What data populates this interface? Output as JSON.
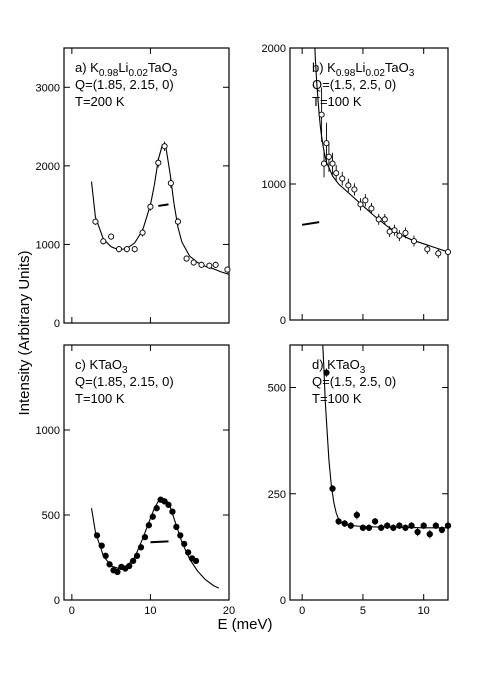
{
  "figure": {
    "ylabel": "Intensity (Arbitrary Units)",
    "xlabel": "E (meV)"
  },
  "chart_data": [
    {
      "id": "a",
      "type": "scatter",
      "label_lines": [
        {
          "parts": [
            {
              "t": "a) K"
            },
            {
              "t": "0.98",
              "sub": true
            },
            {
              "t": "Li"
            },
            {
              "t": "0.02",
              "sub": true
            },
            {
              "t": "TaO"
            },
            {
              "t": "3",
              "sub": true
            }
          ]
        },
        {
          "parts": [
            {
              "t": "Q=(1.85, 2.15, 0)"
            }
          ]
        },
        {
          "parts": [
            {
              "t": "T=200 K"
            }
          ]
        }
      ],
      "xlim": [
        -1,
        20
      ],
      "ylim": [
        0,
        3500
      ],
      "xticks": [
        0,
        10,
        20
      ],
      "xtick_labels": [
        "",
        "",
        ""
      ],
      "yticks": [
        0,
        1000,
        2000,
        3000
      ],
      "ytick_labels": [
        "0",
        "1000",
        "2000",
        "3000"
      ],
      "marker": "open-circle",
      "points": [
        {
          "x": 3.0,
          "y": 1290,
          "err": 40
        },
        {
          "x": 4.0,
          "y": 1040,
          "err": 40
        },
        {
          "x": 5.0,
          "y": 1100,
          "err": 40
        },
        {
          "x": 6.0,
          "y": 940,
          "err": 40
        },
        {
          "x": 7.0,
          "y": 940,
          "err": 40
        },
        {
          "x": 8.0,
          "y": 940,
          "err": 40
        },
        {
          "x": 9.0,
          "y": 1150,
          "err": 50
        },
        {
          "x": 10.0,
          "y": 1480,
          "err": 50
        },
        {
          "x": 11.0,
          "y": 2040,
          "err": 60
        },
        {
          "x": 11.8,
          "y": 2250,
          "err": 60
        },
        {
          "x": 12.6,
          "y": 1780,
          "err": 60
        },
        {
          "x": 13.5,
          "y": 1290,
          "err": 50
        },
        {
          "x": 14.6,
          "y": 820,
          "err": 40
        },
        {
          "x": 15.5,
          "y": 770,
          "err": 40
        },
        {
          "x": 16.5,
          "y": 740,
          "err": 40
        },
        {
          "x": 17.5,
          "y": 730,
          "err": 40
        },
        {
          "x": 18.3,
          "y": 740,
          "err": 40
        },
        {
          "x": 19.8,
          "y": 680,
          "err": 40
        }
      ],
      "fit": {
        "x": [
          2.5,
          3.0,
          4.0,
          5.0,
          6.0,
          7.0,
          8.0,
          9.0,
          10.0,
          10.5,
          11.0,
          11.5,
          12.0,
          12.5,
          13.0,
          13.5,
          14.0,
          15.0,
          16.0,
          17.0,
          18.0,
          19.0,
          20.0
        ],
        "y": [
          1800,
          1350,
          1070,
          970,
          930,
          950,
          1020,
          1180,
          1500,
          1760,
          2080,
          2260,
          2220,
          1900,
          1520,
          1220,
          1030,
          850,
          770,
          720,
          690,
          650,
          620
        ]
      },
      "segment": {
        "x": [
          11.0,
          12.3
        ],
        "y": [
          1490,
          1510
        ]
      }
    },
    {
      "id": "b",
      "type": "scatter",
      "label_lines": [
        {
          "parts": [
            {
              "t": "b) K"
            },
            {
              "t": "0.98",
              "sub": true
            },
            {
              "t": "Li"
            },
            {
              "t": "0.02",
              "sub": true
            },
            {
              "t": "TaO"
            },
            {
              "t": "3",
              "sub": true
            }
          ]
        },
        {
          "parts": [
            {
              "t": "Q=(1.5, 2.5, 0)"
            }
          ]
        },
        {
          "parts": [
            {
              "t": "T=100 K"
            }
          ]
        }
      ],
      "xlim": [
        -1,
        12
      ],
      "ylim": [
        0,
        2000
      ],
      "xticks": [
        0,
        5,
        10
      ],
      "xtick_labels": [
        "",
        "",
        ""
      ],
      "yticks": [
        0,
        1000,
        2000
      ],
      "ytick_labels": [
        "0",
        "1000",
        "2000"
      ],
      "marker": "open-circle",
      "points": [
        {
          "x": 1.6,
          "y": 1510,
          "err": 200
        },
        {
          "x": 1.8,
          "y": 1150,
          "err": 100
        },
        {
          "x": 2.0,
          "y": 1300,
          "err": 150
        },
        {
          "x": 2.2,
          "y": 1200,
          "err": 110
        },
        {
          "x": 2.5,
          "y": 1150,
          "err": 80
        },
        {
          "x": 2.8,
          "y": 1080,
          "err": 60
        },
        {
          "x": 3.3,
          "y": 1040,
          "err": 50
        },
        {
          "x": 3.8,
          "y": 990,
          "err": 50
        },
        {
          "x": 4.3,
          "y": 960,
          "err": 45
        },
        {
          "x": 4.8,
          "y": 850,
          "err": 45
        },
        {
          "x": 5.2,
          "y": 880,
          "err": 45
        },
        {
          "x": 5.7,
          "y": 820,
          "err": 40
        },
        {
          "x": 6.3,
          "y": 740,
          "err": 40
        },
        {
          "x": 6.8,
          "y": 740,
          "err": 40
        },
        {
          "x": 7.2,
          "y": 650,
          "err": 40
        },
        {
          "x": 7.6,
          "y": 660,
          "err": 40
        },
        {
          "x": 8.0,
          "y": 620,
          "err": 40
        },
        {
          "x": 8.5,
          "y": 640,
          "err": 40
        },
        {
          "x": 9.2,
          "y": 580,
          "err": 40
        },
        {
          "x": 10.3,
          "y": 520,
          "err": 35
        },
        {
          "x": 11.2,
          "y": 490,
          "err": 35
        },
        {
          "x": 12.0,
          "y": 500,
          "err": 30
        }
      ],
      "fit": {
        "x": [
          1.05,
          1.1,
          1.2,
          1.3,
          1.4,
          1.5,
          1.6,
          1.8,
          2.0,
          2.5,
          3.0,
          4.0,
          5.0,
          6.0,
          7.0,
          8.0,
          9.0,
          10.0,
          11.0,
          12.0
        ],
        "y": [
          2000,
          1900,
          1750,
          1620,
          1510,
          1420,
          1350,
          1240,
          1160,
          1060,
          1000,
          920,
          840,
          760,
          690,
          630,
          590,
          560,
          530,
          500
        ]
      },
      "segment": {
        "x": [
          0.0,
          1.4
        ],
        "y": [
          700,
          720
        ]
      }
    },
    {
      "id": "c",
      "type": "scatter",
      "label_lines": [
        {
          "parts": [
            {
              "t": "c) KTaO"
            },
            {
              "t": "3",
              "sub": true
            }
          ]
        },
        {
          "parts": [
            {
              "t": "Q=(1.85, 2.15, 0)"
            }
          ]
        },
        {
          "parts": [
            {
              "t": "T=100 K"
            }
          ]
        }
      ],
      "xlim": [
        -1,
        20
      ],
      "ylim": [
        0,
        1500
      ],
      "xticks": [
        0,
        10,
        20
      ],
      "xtick_labels": [
        "0",
        "10",
        "20"
      ],
      "yticks": [
        0,
        500,
        1000
      ],
      "ytick_labels": [
        "0",
        "500",
        "1000"
      ],
      "marker": "filled-circle",
      "points": [
        {
          "x": 3.2,
          "y": 380
        },
        {
          "x": 3.8,
          "y": 320
        },
        {
          "x": 4.3,
          "y": 260
        },
        {
          "x": 4.8,
          "y": 210
        },
        {
          "x": 5.3,
          "y": 175
        },
        {
          "x": 5.8,
          "y": 165
        },
        {
          "x": 6.3,
          "y": 195
        },
        {
          "x": 6.8,
          "y": 185
        },
        {
          "x": 7.3,
          "y": 200
        },
        {
          "x": 7.8,
          "y": 230
        },
        {
          "x": 8.3,
          "y": 260
        },
        {
          "x": 8.8,
          "y": 310
        },
        {
          "x": 9.3,
          "y": 370
        },
        {
          "x": 9.8,
          "y": 440
        },
        {
          "x": 10.3,
          "y": 490
        },
        {
          "x": 10.8,
          "y": 540
        },
        {
          "x": 11.3,
          "y": 590
        },
        {
          "x": 11.8,
          "y": 580
        },
        {
          "x": 12.3,
          "y": 560
        },
        {
          "x": 12.8,
          "y": 520
        },
        {
          "x": 13.3,
          "y": 430
        },
        {
          "x": 13.8,
          "y": 380
        },
        {
          "x": 14.3,
          "y": 330
        },
        {
          "x": 14.8,
          "y": 280
        },
        {
          "x": 15.3,
          "y": 245
        },
        {
          "x": 15.8,
          "y": 230
        }
      ],
      "fit": {
        "x": [
          2.5,
          3.0,
          4.0,
          5.0,
          6.0,
          7.0,
          8.0,
          9.0,
          10.0,
          10.5,
          11.0,
          11.5,
          12.0,
          12.5,
          13.0,
          14.0,
          15.0,
          16.0,
          17.0,
          18.0,
          18.7
        ],
        "y": [
          540,
          400,
          260,
          200,
          185,
          200,
          250,
          360,
          480,
          540,
          580,
          600,
          590,
          550,
          480,
          340,
          240,
          170,
          120,
          85,
          70
        ]
      },
      "segment": {
        "x": [
          10.0,
          12.3
        ],
        "y": [
          340,
          345
        ]
      }
    },
    {
      "id": "d",
      "type": "scatter",
      "label_lines": [
        {
          "parts": [
            {
              "t": "d) KTaO"
            },
            {
              "t": "3",
              "sub": true
            }
          ]
        },
        {
          "parts": [
            {
              "t": "Q=(1.5, 2.5, 0)"
            }
          ]
        },
        {
          "parts": [
            {
              "t": "T=100 K"
            }
          ]
        }
      ],
      "xlim": [
        -1,
        12
      ],
      "ylim": [
        0,
        600
      ],
      "xticks": [
        0,
        5,
        10
      ],
      "xtick_labels": [
        "0",
        "5",
        "10"
      ],
      "yticks": [
        0,
        250,
        500
      ],
      "ytick_labels": [
        "0",
        "250",
        "500"
      ],
      "marker": "filled-circle",
      "points": [
        {
          "x": 2.0,
          "y": 535,
          "err": 10
        },
        {
          "x": 2.5,
          "y": 262,
          "err": 8
        },
        {
          "x": 3.0,
          "y": 185,
          "err": 8
        },
        {
          "x": 3.5,
          "y": 180,
          "err": 8
        },
        {
          "x": 4.0,
          "y": 175,
          "err": 8
        },
        {
          "x": 4.5,
          "y": 200,
          "err": 10
        },
        {
          "x": 5.0,
          "y": 170,
          "err": 8
        },
        {
          "x": 5.5,
          "y": 170,
          "err": 8
        },
        {
          "x": 6.0,
          "y": 185,
          "err": 8
        },
        {
          "x": 6.5,
          "y": 170,
          "err": 8
        },
        {
          "x": 7.0,
          "y": 175,
          "err": 8
        },
        {
          "x": 7.5,
          "y": 170,
          "err": 8
        },
        {
          "x": 8.0,
          "y": 175,
          "err": 8
        },
        {
          "x": 8.5,
          "y": 170,
          "err": 8
        },
        {
          "x": 9.0,
          "y": 175,
          "err": 8
        },
        {
          "x": 9.5,
          "y": 160,
          "err": 10
        },
        {
          "x": 10.0,
          "y": 175,
          "err": 8
        },
        {
          "x": 10.5,
          "y": 155,
          "err": 10
        },
        {
          "x": 11.0,
          "y": 175,
          "err": 8
        },
        {
          "x": 11.5,
          "y": 165,
          "err": 8
        },
        {
          "x": 12.0,
          "y": 175,
          "err": 8
        }
      ],
      "fit": {
        "x": [
          1.7,
          1.8,
          1.9,
          2.0,
          2.2,
          2.4,
          2.6,
          2.8,
          3.0,
          3.3,
          3.6,
          4.0,
          5.0,
          6.0,
          8.0,
          10.0,
          12.0
        ],
        "y": [
          600,
          540,
          470,
          420,
          330,
          270,
          230,
          205,
          190,
          180,
          177,
          175,
          173,
          172,
          171,
          170,
          170
        ]
      },
      "segment": null
    }
  ]
}
